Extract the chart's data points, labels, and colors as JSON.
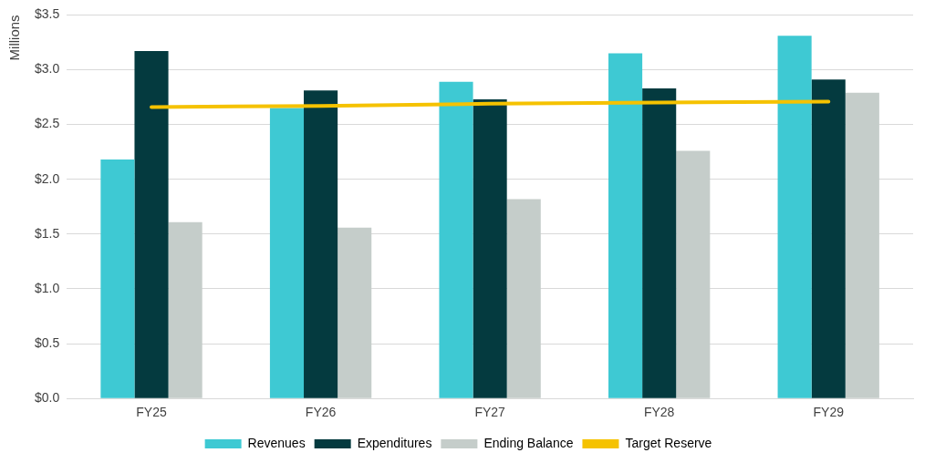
{
  "chart_data": {
    "type": "bar",
    "ylabel": "Millions",
    "categories": [
      "FY25",
      "FY26",
      "FY27",
      "FY28",
      "FY29"
    ],
    "series": [
      {
        "name": "Revenues",
        "color": "#3ec9d3",
        "values": [
          2.18,
          2.65,
          2.89,
          3.15,
          3.31
        ]
      },
      {
        "name": "Expenditures",
        "color": "#043a3f",
        "values": [
          3.17,
          2.81,
          2.73,
          2.83,
          2.91
        ]
      },
      {
        "name": "Ending Balance",
        "color": "#c5cdca",
        "values": [
          1.61,
          1.56,
          1.82,
          2.26,
          2.79
        ]
      },
      {
        "name": "Target Reserve",
        "type": "line",
        "color": "#f5c200",
        "values": [
          2.66,
          2.67,
          2.69,
          2.7,
          2.71
        ]
      }
    ],
    "ylim": [
      0,
      3.5
    ],
    "yticks": [
      {
        "value": 0,
        "label": "$0.0"
      },
      {
        "value": 0.5,
        "label": "$0.5"
      },
      {
        "value": 1,
        "label": "$1.0"
      },
      {
        "value": 1.5,
        "label": "$1.5"
      },
      {
        "value": 2,
        "label": "$2.0"
      },
      {
        "value": 2.5,
        "label": "$2.5"
      },
      {
        "value": 3,
        "label": "$3.0"
      },
      {
        "value": 3.5,
        "label": "$3.5"
      }
    ],
    "grid": "y",
    "legend": "bottom",
    "marker": "none"
  }
}
